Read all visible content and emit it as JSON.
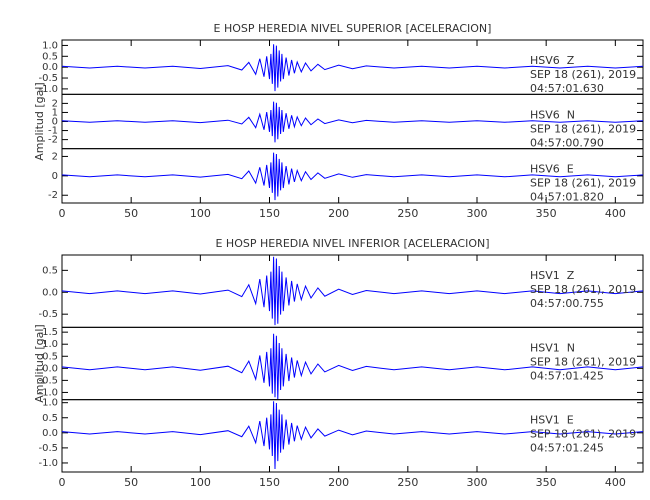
{
  "chart_data": [
    {
      "type": "line",
      "title": "E HOSP HEREDIA NIVEL SUPERIOR [ACELERACION]",
      "y_label": "Amplitud [gal]",
      "xlim": [
        0,
        420
      ],
      "xticks": [
        0,
        50,
        100,
        150,
        200,
        250,
        300,
        350,
        400
      ],
      "x": [
        0,
        20,
        40,
        60,
        80,
        100,
        120,
        130,
        135,
        140,
        143,
        146,
        148,
        150,
        151,
        152,
        153,
        154,
        155,
        156,
        157,
        158,
        159,
        160,
        162,
        164,
        166,
        168,
        170,
        173,
        176,
        180,
        185,
        190,
        200,
        210,
        220,
        240,
        260,
        280,
        300,
        320,
        340,
        360,
        380,
        400,
        420
      ],
      "panels": [
        {
          "station": "HSV6  Z",
          "date": "SEP 18 (261), 2019",
          "time": "04:57:01.630",
          "color": "#0000ff",
          "ylim": [
            -1.25,
            1.25
          ],
          "yticks": [
            {
              "value": 1,
              "label": "1.0"
            },
            0.5,
            {
              "value": 0,
              "label": "0.0"
            },
            -0.5,
            {
              "value": -1,
              "label": "-1.0"
            }
          ],
          "values": [
            0.04,
            -0.04,
            0.04,
            -0.04,
            0.04,
            -0.06,
            0.07,
            -0.13,
            0.22,
            -0.33,
            0.39,
            -0.44,
            0.5,
            -0.55,
            0.61,
            -0.77,
            1.05,
            -1.1,
            0.99,
            -0.94,
            0.77,
            -0.66,
            0.61,
            -0.55,
            0.44,
            -0.39,
            0.33,
            -0.28,
            0.24,
            -0.22,
            0.19,
            -0.17,
            0.13,
            -0.11,
            0.09,
            -0.07,
            0.06,
            -0.04,
            0.04,
            -0.04,
            0.04,
            -0.04,
            0.04,
            -0.04,
            0.04,
            -0.04,
            0.04
          ]
        },
        {
          "station": "HSV6  N",
          "date": "SEP 18 (261), 2019",
          "time": "04:57:00.790",
          "color": "#0000ff",
          "ylim": [
            -3,
            3
          ],
          "yticks": [
            2,
            1,
            0,
            -1,
            -2
          ],
          "values": [
            0.09,
            -0.09,
            0.09,
            -0.09,
            0.09,
            -0.12,
            0.14,
            -0.28,
            0.46,
            -0.69,
            0.81,
            -0.92,
            1.04,
            -1.15,
            1.27,
            -1.61,
            2.19,
            -2.3,
            2.07,
            -1.96,
            1.61,
            -1.38,
            1.27,
            -1.15,
            0.92,
            -0.81,
            0.69,
            -0.58,
            0.51,
            -0.46,
            0.39,
            -0.35,
            0.28,
            -0.23,
            0.18,
            -0.14,
            0.12,
            -0.09,
            0.09,
            -0.09,
            0.09,
            -0.09,
            0.09,
            -0.09,
            0.09,
            -0.09,
            0.09
          ]
        },
        {
          "station": "HSV6  E",
          "date": "SEP 18 (261), 2019",
          "time": "04:57:01.820",
          "color": "#0000ff",
          "ylim": [
            -2.8,
            2.8
          ],
          "yticks": [
            2,
            0,
            -2
          ],
          "values": [
            0.1,
            -0.1,
            0.1,
            -0.1,
            0.1,
            -0.13,
            0.15,
            -0.3,
            0.5,
            -0.75,
            0.88,
            -1,
            1.13,
            -1.25,
            1.38,
            -1.75,
            2.38,
            -2.5,
            2.25,
            -2.13,
            1.75,
            -1.5,
            1.38,
            -1.25,
            1,
            -0.88,
            0.75,
            -0.63,
            0.55,
            -0.5,
            0.43,
            -0.38,
            0.3,
            -0.25,
            0.2,
            -0.15,
            0.13,
            -0.1,
            0.1,
            -0.1,
            0.1,
            -0.1,
            0.1,
            -0.1,
            0.1,
            -0.1,
            0.1
          ]
        }
      ]
    },
    {
      "type": "line",
      "title": "E HOSP HEREDIA NIVEL INFERIOR [ACELERACION]",
      "y_label": "Amplitud [gal]",
      "xlim": [
        0,
        420
      ],
      "xticks": [
        0,
        50,
        100,
        150,
        200,
        250,
        300,
        350,
        400
      ],
      "x": [
        0,
        20,
        40,
        60,
        80,
        100,
        120,
        130,
        135,
        140,
        143,
        146,
        148,
        150,
        151,
        152,
        153,
        154,
        155,
        156,
        157,
        158,
        159,
        160,
        162,
        164,
        166,
        168,
        170,
        173,
        176,
        180,
        185,
        190,
        200,
        210,
        220,
        240,
        260,
        280,
        300,
        320,
        340,
        360,
        380,
        400,
        420
      ],
      "panels": [
        {
          "station": "HSV1  Z",
          "date": "SEP 18 (261), 2019",
          "time": "04:57:00.755",
          "color": "#0000ff",
          "ylim": [
            -0.8,
            0.85
          ],
          "yticks": [
            0.5,
            {
              "value": 0,
              "label": "0.0"
            },
            -0.5
          ],
          "values": [
            0.03,
            -0.03,
            0.03,
            -0.03,
            0.03,
            -0.04,
            0.05,
            -0.1,
            0.17,
            -0.26,
            0.3,
            -0.34,
            0.38,
            -0.43,
            0.47,
            -0.6,
            0.81,
            -0.75,
            0.77,
            -0.72,
            0.6,
            -0.51,
            0.47,
            -0.43,
            0.34,
            -0.3,
            0.26,
            -0.21,
            0.19,
            -0.17,
            0.14,
            -0.13,
            0.1,
            -0.09,
            0.07,
            -0.05,
            0.04,
            -0.03,
            0.03,
            -0.03,
            0.03,
            -0.03,
            0.03,
            -0.03,
            0.03,
            -0.03,
            0.03
          ]
        },
        {
          "station": "HSV1  N",
          "date": "SEP 18 (261), 2019",
          "time": "04:57:01.425",
          "color": "#0000ff",
          "ylim": [
            -1.3,
            1.7
          ],
          "yticks": [
            1.5,
            {
              "value": 1,
              "label": "1.0"
            },
            0.5,
            {
              "value": 0,
              "label": "0.0"
            },
            -0.5,
            {
              "value": -1,
              "label": "-1.0"
            }
          ],
          "values": [
            0.06,
            -0.06,
            0.06,
            -0.06,
            0.06,
            -0.08,
            0.09,
            -0.18,
            0.3,
            -0.45,
            0.53,
            -0.6,
            0.68,
            -0.75,
            0.83,
            -1.05,
            1.43,
            -1.2,
            1.35,
            -1.28,
            1.05,
            -0.9,
            0.83,
            -0.75,
            0.6,
            -0.53,
            0.45,
            -0.38,
            0.33,
            -0.3,
            0.26,
            -0.23,
            0.18,
            -0.15,
            0.12,
            -0.09,
            0.08,
            -0.06,
            0.06,
            -0.06,
            0.06,
            -0.06,
            0.06,
            -0.06,
            0.06,
            -0.06,
            0.06
          ]
        },
        {
          "station": "HSV1  E",
          "date": "SEP 18 (261), 2019",
          "time": "04:57:01.245",
          "color": "#0000ff",
          "ylim": [
            -1.3,
            1.1
          ],
          "yticks": [
            {
              "value": 1,
              "label": "1.0"
            },
            0.5,
            {
              "value": 0,
              "label": "0.0"
            },
            -0.5,
            {
              "value": -1,
              "label": "-1.0"
            }
          ],
          "values": [
            0.04,
            -0.04,
            0.04,
            -0.04,
            0.04,
            -0.06,
            0.07,
            -0.13,
            0.22,
            -0.33,
            0.39,
            -0.44,
            0.5,
            -0.55,
            0.61,
            -0.77,
            1.05,
            -1.2,
            0.99,
            -0.94,
            0.77,
            -0.66,
            0.61,
            -0.55,
            0.44,
            -0.39,
            0.33,
            -0.28,
            0.24,
            -0.22,
            0.19,
            -0.17,
            0.13,
            -0.11,
            0.09,
            -0.07,
            0.06,
            -0.04,
            0.04,
            -0.04,
            0.04,
            -0.04,
            0.04,
            -0.04,
            0.04,
            -0.04,
            0.04
          ]
        }
      ]
    }
  ]
}
